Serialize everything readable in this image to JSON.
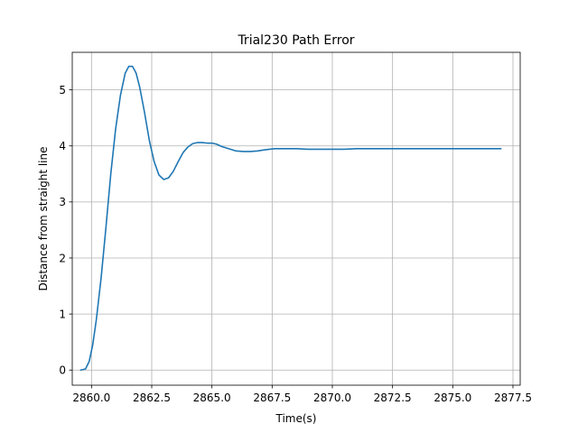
{
  "chart_data": {
    "type": "line",
    "title": "Trial230 Path Error",
    "xlabel": "Time(s)",
    "ylabel": "Distance from straight line",
    "xlim": [
      2859.2,
      2877.8
    ],
    "ylim": [
      -0.27,
      5.67
    ],
    "xticks": [
      2860.0,
      2862.5,
      2865.0,
      2867.5,
      2870.0,
      2872.5,
      2875.0,
      2877.5
    ],
    "xtick_labels": [
      "2860.0",
      "2862.5",
      "2865.0",
      "2867.5",
      "2870.0",
      "2872.5",
      "2875.0",
      "2877.5"
    ],
    "yticks": [
      0,
      1,
      2,
      3,
      4,
      5
    ],
    "ytick_labels": [
      "0",
      "1",
      "2",
      "3",
      "4",
      "5"
    ],
    "grid": true,
    "series": [
      {
        "color": "#1f77b4",
        "x": [
          2859.55,
          2859.75,
          2859.9,
          2860.05,
          2860.2,
          2860.4,
          2860.6,
          2860.8,
          2861.0,
          2861.2,
          2861.4,
          2861.55,
          2861.7,
          2861.85,
          2862.0,
          2862.2,
          2862.4,
          2862.6,
          2862.8,
          2863.0,
          2863.2,
          2863.4,
          2863.6,
          2863.8,
          2864.0,
          2864.2,
          2864.4,
          2864.6,
          2864.8,
          2865.0,
          2865.2,
          2865.4,
          2865.7,
          2866.0,
          2866.3,
          2866.6,
          2866.9,
          2867.2,
          2867.6,
          2868.0,
          2868.5,
          2869.0,
          2869.5,
          2870.0,
          2870.5,
          2871.0,
          2872.0,
          2873.0,
          2874.0,
          2875.0,
          2876.0,
          2877.0
        ],
        "y": [
          0.0,
          0.02,
          0.15,
          0.45,
          0.9,
          1.65,
          2.55,
          3.5,
          4.3,
          4.9,
          5.3,
          5.42,
          5.42,
          5.3,
          5.05,
          4.6,
          4.1,
          3.72,
          3.48,
          3.4,
          3.43,
          3.55,
          3.72,
          3.88,
          3.98,
          4.04,
          4.06,
          4.06,
          4.05,
          4.05,
          4.03,
          3.99,
          3.95,
          3.91,
          3.9,
          3.9,
          3.91,
          3.93,
          3.95,
          3.95,
          3.95,
          3.94,
          3.94,
          3.94,
          3.94,
          3.95,
          3.95,
          3.95,
          3.95,
          3.95,
          3.95,
          3.95
        ]
      }
    ]
  }
}
